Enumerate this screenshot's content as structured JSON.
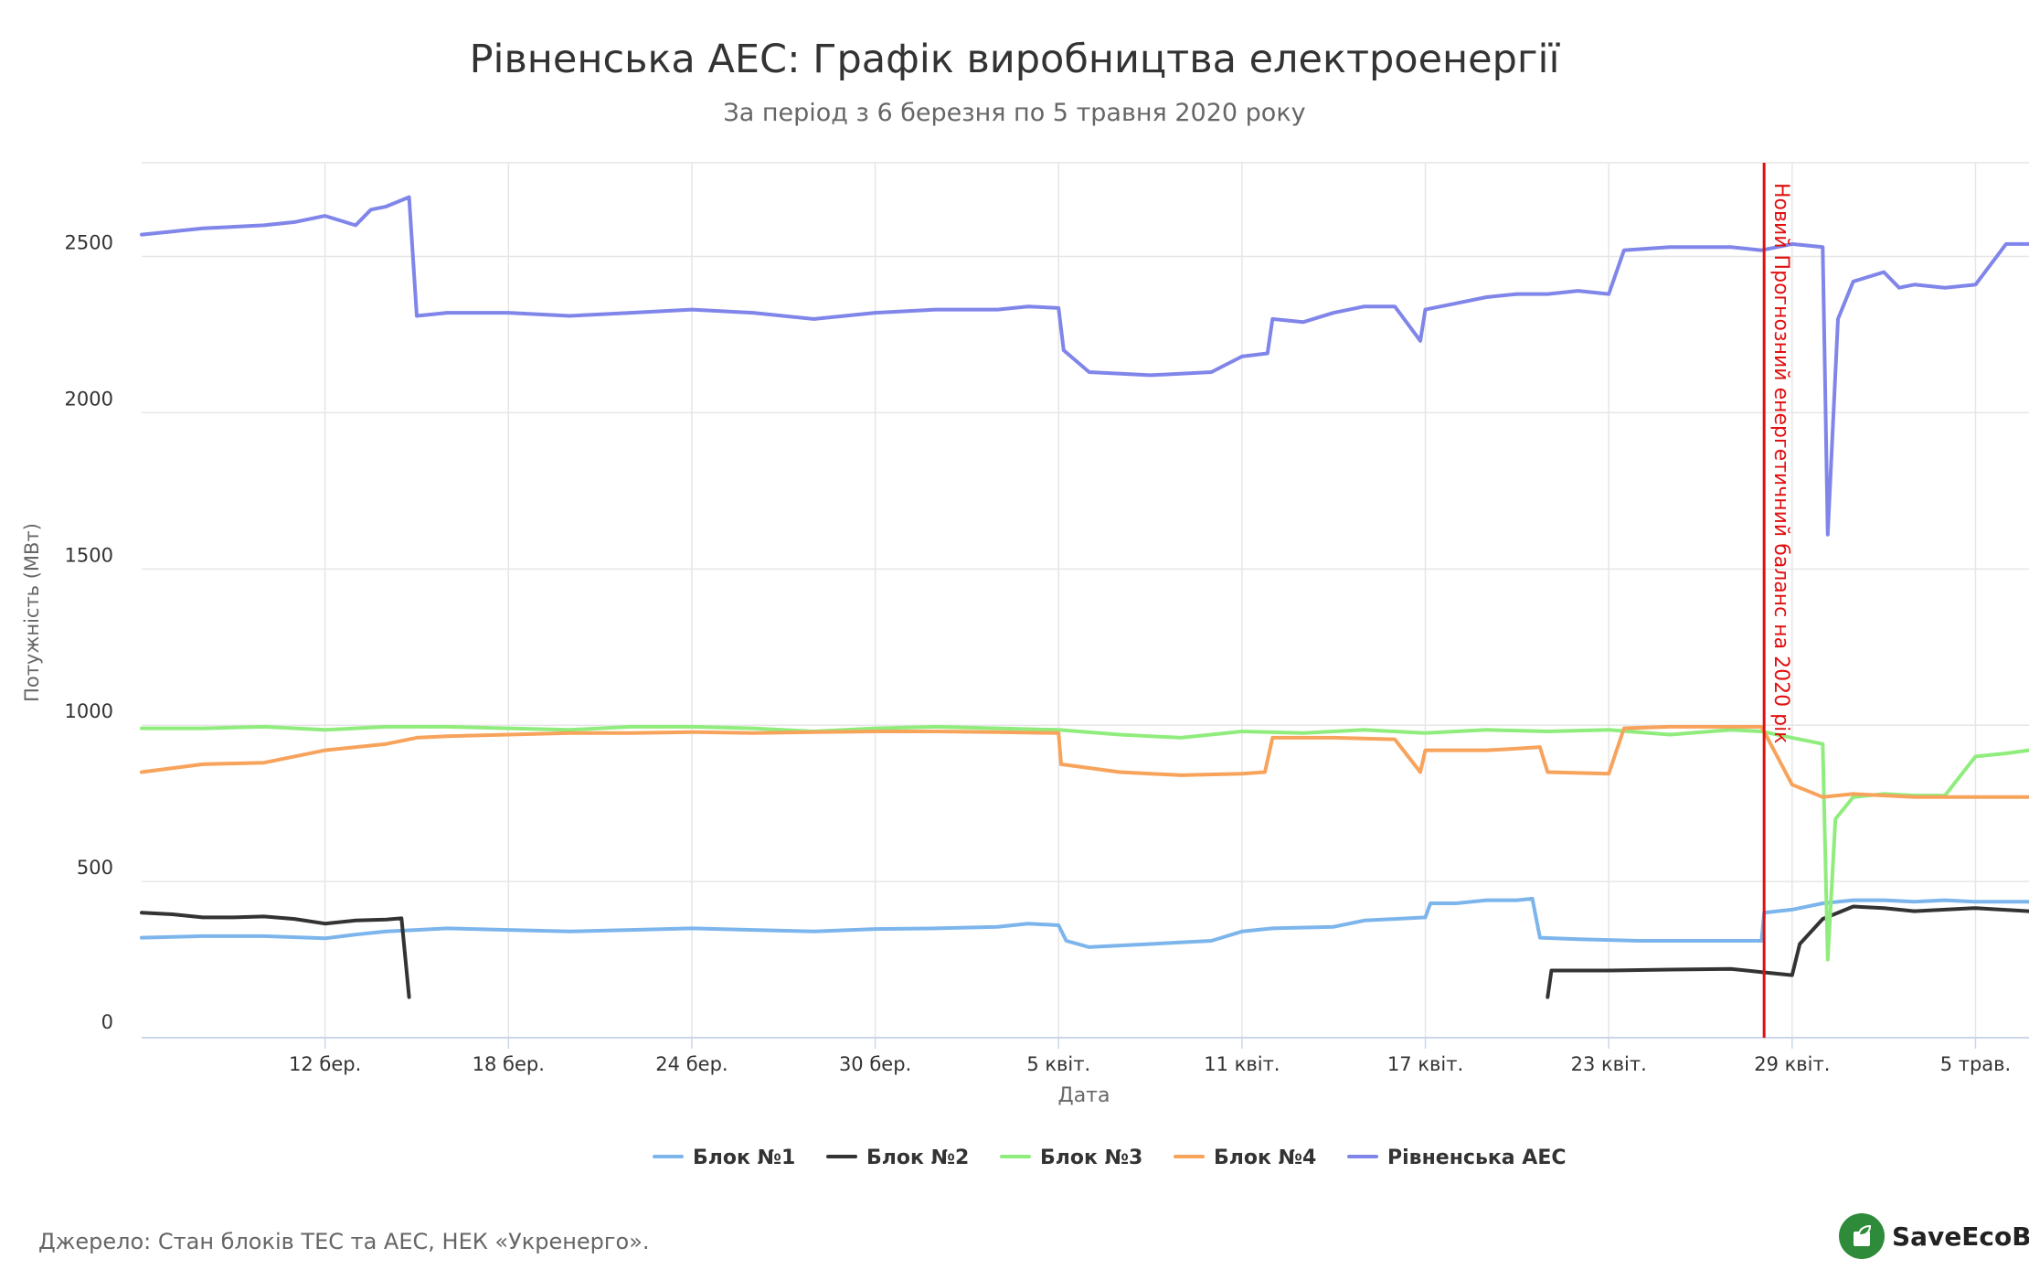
{
  "chart_data": {
    "type": "line",
    "title": "Рівненська АЕС: Графік виробництва електроенергії",
    "subtitle": "За період з 6 березня по 5 травня 2020 року",
    "xlabel": "Дата",
    "ylabel": "Потужність (МВт)",
    "ylim": [
      0,
      2800
    ],
    "xlim": [
      "2020-03-06",
      "2020-05-06T18:00"
    ],
    "y_ticks": [
      0,
      500,
      1000,
      1500,
      2000,
      2500
    ],
    "x_ticks": [
      {
        "date": "2020-03-12",
        "label": "12 бер."
      },
      {
        "date": "2020-03-18",
        "label": "18 бер."
      },
      {
        "date": "2020-03-24",
        "label": "24 бер."
      },
      {
        "date": "2020-03-30",
        "label": "30 бер."
      },
      {
        "date": "2020-04-05",
        "label": "5 квіт."
      },
      {
        "date": "2020-04-11",
        "label": "11 квіт."
      },
      {
        "date": "2020-04-17",
        "label": "17 квіт."
      },
      {
        "date": "2020-04-23",
        "label": "23 квіт."
      },
      {
        "date": "2020-04-29",
        "label": "29 квіт."
      },
      {
        "date": "2020-05-05",
        "label": "5 трав."
      }
    ],
    "grid": true,
    "legend_position": "bottom-center",
    "annotation": {
      "date": "2020-04-28T02:00",
      "label": "Новий Прогнозний енергетичний баланс на 2020 рік",
      "color": "#e01010"
    },
    "series": [
      {
        "name": "Блок №1",
        "color": "#7cb5ec",
        "points": [
          [
            "2020-03-06",
            320
          ],
          [
            "2020-03-08",
            325
          ],
          [
            "2020-03-10",
            325
          ],
          [
            "2020-03-12",
            318
          ],
          [
            "2020-03-13",
            330
          ],
          [
            "2020-03-14",
            340
          ],
          [
            "2020-03-15",
            345
          ],
          [
            "2020-03-16",
            350
          ],
          [
            "2020-03-18",
            345
          ],
          [
            "2020-03-20",
            340
          ],
          [
            "2020-03-22",
            345
          ],
          [
            "2020-03-24",
            350
          ],
          [
            "2020-03-26",
            345
          ],
          [
            "2020-03-28",
            340
          ],
          [
            "2020-03-30",
            348
          ],
          [
            "2020-04-01",
            350
          ],
          [
            "2020-04-03",
            355
          ],
          [
            "2020-04-04",
            365
          ],
          [
            "2020-04-05",
            360
          ],
          [
            "2020-04-05T06:00",
            310
          ],
          [
            "2020-04-06",
            290
          ],
          [
            "2020-04-08",
            300
          ],
          [
            "2020-04-10",
            310
          ],
          [
            "2020-04-11",
            340
          ],
          [
            "2020-04-12",
            350
          ],
          [
            "2020-04-14",
            355
          ],
          [
            "2020-04-15",
            375
          ],
          [
            "2020-04-16",
            380
          ],
          [
            "2020-04-17",
            385
          ],
          [
            "2020-04-17T04:00",
            430
          ],
          [
            "2020-04-18",
            430
          ],
          [
            "2020-04-19",
            440
          ],
          [
            "2020-04-20",
            440
          ],
          [
            "2020-04-20T12:00",
            445
          ],
          [
            "2020-04-20T18:00",
            320
          ],
          [
            "2020-04-22",
            315
          ],
          [
            "2020-04-24",
            310
          ],
          [
            "2020-04-26",
            310
          ],
          [
            "2020-04-28",
            310
          ],
          [
            "2020-04-28T02:00",
            400
          ],
          [
            "2020-04-29",
            410
          ],
          [
            "2020-04-30",
            430
          ],
          [
            "2020-05-01",
            440
          ],
          [
            "2020-05-02",
            440
          ],
          [
            "2020-05-03",
            435
          ],
          [
            "2020-05-04",
            440
          ],
          [
            "2020-05-05",
            435
          ],
          [
            "2020-05-06T18:00",
            435
          ]
        ]
      },
      {
        "name": "Блок №2",
        "color": "#333333",
        "points": [
          [
            "2020-03-06",
            400
          ],
          [
            "2020-03-07",
            395
          ],
          [
            "2020-03-08",
            385
          ],
          [
            "2020-03-09",
            385
          ],
          [
            "2020-03-10",
            388
          ],
          [
            "2020-03-11",
            380
          ],
          [
            "2020-03-12",
            365
          ],
          [
            "2020-03-13",
            375
          ],
          [
            "2020-03-14",
            378
          ],
          [
            "2020-03-14T12:00",
            382
          ],
          [
            "2020-03-14T18:00",
            130
          ],
          null,
          [
            "2020-04-21",
            130
          ],
          [
            "2020-04-21T03:00",
            215
          ],
          [
            "2020-04-23",
            215
          ],
          [
            "2020-04-25",
            218
          ],
          [
            "2020-04-27",
            220
          ],
          [
            "2020-04-28",
            210
          ],
          [
            "2020-04-29",
            200
          ],
          [
            "2020-04-29T06:00",
            300
          ],
          [
            "2020-04-30",
            380
          ],
          [
            "2020-05-01",
            420
          ],
          [
            "2020-05-02",
            415
          ],
          [
            "2020-05-03",
            405
          ],
          [
            "2020-05-04",
            410
          ],
          [
            "2020-05-05",
            415
          ],
          [
            "2020-05-06T18:00",
            405
          ]
        ]
      },
      {
        "name": "Блок №3",
        "color": "#90ed7d",
        "points": [
          [
            "2020-03-06",
            990
          ],
          [
            "2020-03-08",
            990
          ],
          [
            "2020-03-10",
            995
          ],
          [
            "2020-03-12",
            985
          ],
          [
            "2020-03-14",
            995
          ],
          [
            "2020-03-16",
            995
          ],
          [
            "2020-03-18",
            990
          ],
          [
            "2020-03-20",
            985
          ],
          [
            "2020-03-22",
            995
          ],
          [
            "2020-03-24",
            995
          ],
          [
            "2020-03-26",
            990
          ],
          [
            "2020-03-28",
            980
          ],
          [
            "2020-03-30",
            990
          ],
          [
            "2020-04-01",
            995
          ],
          [
            "2020-04-03",
            990
          ],
          [
            "2020-04-05",
            985
          ],
          [
            "2020-04-07",
            970
          ],
          [
            "2020-04-09",
            960
          ],
          [
            "2020-04-11",
            980
          ],
          [
            "2020-04-13",
            975
          ],
          [
            "2020-04-15",
            985
          ],
          [
            "2020-04-17",
            975
          ],
          [
            "2020-04-19",
            985
          ],
          [
            "2020-04-21",
            980
          ],
          [
            "2020-04-23",
            985
          ],
          [
            "2020-04-25",
            970
          ],
          [
            "2020-04-27",
            985
          ],
          [
            "2020-04-28",
            980
          ],
          [
            "2020-04-29",
            960
          ],
          [
            "2020-04-30",
            940
          ],
          [
            "2020-04-30T04:00",
            250
          ],
          [
            "2020-04-30T10:00",
            700
          ],
          [
            "2020-05-01",
            770
          ],
          [
            "2020-05-02",
            780
          ],
          [
            "2020-05-03",
            775
          ],
          [
            "2020-05-04",
            775
          ],
          [
            "2020-05-05",
            900
          ],
          [
            "2020-05-06",
            910
          ],
          [
            "2020-05-06T18:00",
            920
          ]
        ]
      },
      {
        "name": "Блок №4",
        "color": "#f7a35c",
        "points": [
          [
            "2020-03-06",
            850
          ],
          [
            "2020-03-08",
            875
          ],
          [
            "2020-03-10",
            880
          ],
          [
            "2020-03-11",
            900
          ],
          [
            "2020-03-12",
            920
          ],
          [
            "2020-03-14",
            940
          ],
          [
            "2020-03-15",
            960
          ],
          [
            "2020-03-16",
            965
          ],
          [
            "2020-03-18",
            970
          ],
          [
            "2020-03-20",
            975
          ],
          [
            "2020-03-22",
            975
          ],
          [
            "2020-03-24",
            978
          ],
          [
            "2020-03-26",
            975
          ],
          [
            "2020-03-28",
            978
          ],
          [
            "2020-03-30",
            980
          ],
          [
            "2020-04-01",
            980
          ],
          [
            "2020-04-03",
            978
          ],
          [
            "2020-04-05",
            975
          ],
          [
            "2020-04-05T02:00",
            875
          ],
          [
            "2020-04-07",
            850
          ],
          [
            "2020-04-09",
            840
          ],
          [
            "2020-04-11",
            845
          ],
          [
            "2020-04-11T18:00",
            850
          ],
          [
            "2020-04-12",
            960
          ],
          [
            "2020-04-14",
            960
          ],
          [
            "2020-04-16",
            955
          ],
          [
            "2020-04-16T20:00",
            850
          ],
          [
            "2020-04-17",
            920
          ],
          [
            "2020-04-19",
            920
          ],
          [
            "2020-04-20",
            925
          ],
          [
            "2020-04-20T18:00",
            930
          ],
          [
            "2020-04-21",
            850
          ],
          [
            "2020-04-23",
            845
          ],
          [
            "2020-04-23T12:00",
            990
          ],
          [
            "2020-04-25",
            995
          ],
          [
            "2020-04-27",
            995
          ],
          [
            "2020-04-28",
            995
          ],
          [
            "2020-04-29",
            810
          ],
          [
            "2020-04-30",
            770
          ],
          [
            "2020-05-01",
            780
          ],
          [
            "2020-05-03",
            770
          ],
          [
            "2020-05-05",
            770
          ],
          [
            "2020-05-06T18:00",
            770
          ]
        ]
      },
      {
        "name": "Рівненська АЕС",
        "color": "#8085e9",
        "points": [
          [
            "2020-03-06",
            2570
          ],
          [
            "2020-03-07",
            2580
          ],
          [
            "2020-03-08",
            2590
          ],
          [
            "2020-03-10",
            2600
          ],
          [
            "2020-03-11",
            2610
          ],
          [
            "2020-03-12",
            2630
          ],
          [
            "2020-03-13",
            2600
          ],
          [
            "2020-03-13T12:00",
            2650
          ],
          [
            "2020-03-14",
            2660
          ],
          [
            "2020-03-14T18:00",
            2690
          ],
          [
            "2020-03-15",
            2310
          ],
          [
            "2020-03-16",
            2320
          ],
          [
            "2020-03-18",
            2320
          ],
          [
            "2020-03-20",
            2310
          ],
          [
            "2020-03-22",
            2320
          ],
          [
            "2020-03-24",
            2330
          ],
          [
            "2020-03-26",
            2320
          ],
          [
            "2020-03-28",
            2300
          ],
          [
            "2020-03-30",
            2320
          ],
          [
            "2020-04-01",
            2330
          ],
          [
            "2020-04-03",
            2330
          ],
          [
            "2020-04-04",
            2340
          ],
          [
            "2020-04-05",
            2335
          ],
          [
            "2020-04-05T04:00",
            2200
          ],
          [
            "2020-04-06",
            2130
          ],
          [
            "2020-04-08",
            2120
          ],
          [
            "2020-04-10",
            2130
          ],
          [
            "2020-04-11",
            2180
          ],
          [
            "2020-04-11T20:00",
            2190
          ],
          [
            "2020-04-12",
            2300
          ],
          [
            "2020-04-13",
            2290
          ],
          [
            "2020-04-14",
            2320
          ],
          [
            "2020-04-15",
            2340
          ],
          [
            "2020-04-16",
            2340
          ],
          [
            "2020-04-16T20:00",
            2230
          ],
          [
            "2020-04-17",
            2330
          ],
          [
            "2020-04-18",
            2350
          ],
          [
            "2020-04-19",
            2370
          ],
          [
            "2020-04-20",
            2380
          ],
          [
            "2020-04-21",
            2380
          ],
          [
            "2020-04-22",
            2390
          ],
          [
            "2020-04-23",
            2380
          ],
          [
            "2020-04-23T12:00",
            2520
          ],
          [
            "2020-04-25",
            2530
          ],
          [
            "2020-04-27",
            2530
          ],
          [
            "2020-04-28",
            2520
          ],
          [
            "2020-04-29",
            2540
          ],
          [
            "2020-04-30",
            2530
          ],
          [
            "2020-04-30T04:00",
            1610
          ],
          [
            "2020-04-30T12:00",
            2300
          ],
          [
            "2020-05-01",
            2420
          ],
          [
            "2020-05-02",
            2450
          ],
          [
            "2020-05-02T12:00",
            2400
          ],
          [
            "2020-05-03",
            2410
          ],
          [
            "2020-05-04",
            2400
          ],
          [
            "2020-05-05",
            2410
          ],
          [
            "2020-05-06",
            2540
          ],
          [
            "2020-05-06T18:00",
            2540
          ]
        ]
      }
    ]
  },
  "footer": {
    "source": "Джерело: Стан блоків ТЕС та АЕС, НЕК «Укренерго».",
    "logo_text": "SaveEcoBot"
  }
}
